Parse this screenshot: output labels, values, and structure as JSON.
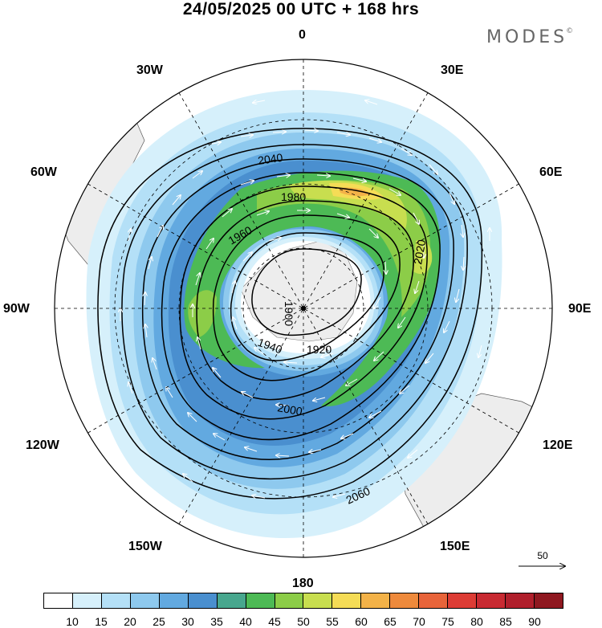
{
  "header": {
    "title": "24/05/2025  00 UTC  + 168 hrs",
    "brand": "MODES",
    "brand_mark": "©"
  },
  "map": {
    "projection": "south-polar-stereographic",
    "meridian_labels": [
      "0",
      "30E",
      "60E",
      "90E",
      "120E",
      "150E",
      "180",
      "150W",
      "120W",
      "90W",
      "60W",
      "30W"
    ],
    "contour_labels": [
      "1900",
      "1920",
      "1940",
      "1960",
      "1980",
      "2000",
      "2020",
      "2040",
      "2060"
    ],
    "wind_vector_reference": "50",
    "land_color": "#ededed",
    "contour_color": "#000000",
    "vector_color": "#ffffff"
  },
  "colorbar": {
    "ticks": [
      "10",
      "15",
      "20",
      "25",
      "30",
      "35",
      "40",
      "45",
      "50",
      "55",
      "60",
      "65",
      "70",
      "75",
      "80",
      "85",
      "90"
    ],
    "colors": [
      "#ffffff",
      "#d6f0fb",
      "#b4e0f7",
      "#8ec9ee",
      "#62a9e0",
      "#4a8fcf",
      "#48a78e",
      "#4dba55",
      "#8ccd48",
      "#c8de4f",
      "#f5dc56",
      "#f3b248",
      "#ee8a3c",
      "#e8643a",
      "#dd3c35",
      "#c82a32",
      "#b01f2c",
      "#8f1820"
    ]
  }
}
